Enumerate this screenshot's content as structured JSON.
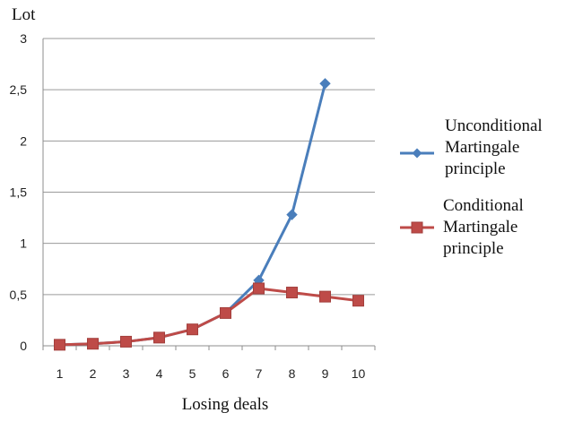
{
  "chart_data": {
    "type": "line",
    "title": "",
    "xlabel": "Losing deals",
    "ylabel": "Lot",
    "x": [
      1,
      2,
      3,
      4,
      5,
      6,
      7,
      8,
      9,
      10
    ],
    "ylim": [
      0,
      3
    ],
    "yticks": [
      0,
      0.5,
      1,
      1.5,
      2,
      2.5,
      3
    ],
    "ytick_labels": [
      "0",
      "0,5",
      "1",
      "1,5",
      "2",
      "2,5",
      "3"
    ],
    "grid": "horizontal",
    "legend_position": "right",
    "series": [
      {
        "name_lines": [
          "Unconditional",
          "Martingale",
          "principle"
        ],
        "color": "#4a7ebb",
        "marker": "diamond",
        "x": [
          1,
          2,
          3,
          4,
          5,
          6,
          7,
          8,
          9
        ],
        "values": [
          0.01,
          0.02,
          0.04,
          0.08,
          0.16,
          0.32,
          0.64,
          1.28,
          2.56
        ]
      },
      {
        "name_lines": [
          "Conditional",
          "Martingale",
          "principle"
        ],
        "color": "#be4b48",
        "marker": "square",
        "x": [
          1,
          2,
          3,
          4,
          5,
          6,
          7,
          8,
          9,
          10
        ],
        "values": [
          0.01,
          0.02,
          0.04,
          0.08,
          0.16,
          0.32,
          0.56,
          0.52,
          0.48,
          0.44
        ]
      }
    ]
  }
}
